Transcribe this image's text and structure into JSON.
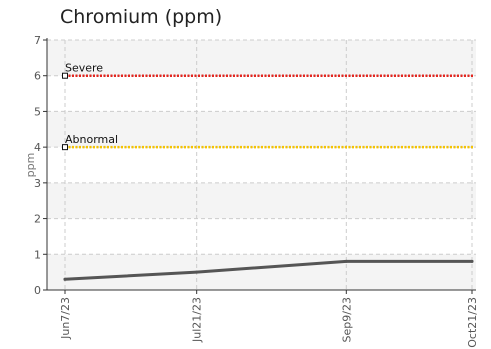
{
  "chart_data": {
    "type": "line",
    "title": "Chromium (ppm)",
    "xlabel": "",
    "ylabel": "ppm",
    "ylim": [
      0,
      7
    ],
    "y_ticks": [
      "0",
      "1",
      "2",
      "3",
      "4",
      "5",
      "6",
      "7"
    ],
    "x_ticks": [
      "Jun7/23",
      "Jul21/23",
      "Sep9/23",
      "Oct21/23"
    ],
    "grid": true,
    "legend": "none",
    "series": [
      {
        "x": [
          "2023-06-07",
          "2023-07-21",
          "2023-09-09",
          "2023-10-21"
        ],
        "values": [
          0.3,
          0.5,
          0.8,
          0.8
        ],
        "color": "#555555"
      }
    ],
    "thresholds": [
      {
        "label": "Severe",
        "value": 6,
        "color": "#e3261f"
      },
      {
        "label": "Abnormal",
        "value": 4,
        "color": "#f5c400"
      }
    ],
    "band_color": "#f4f4f4"
  }
}
